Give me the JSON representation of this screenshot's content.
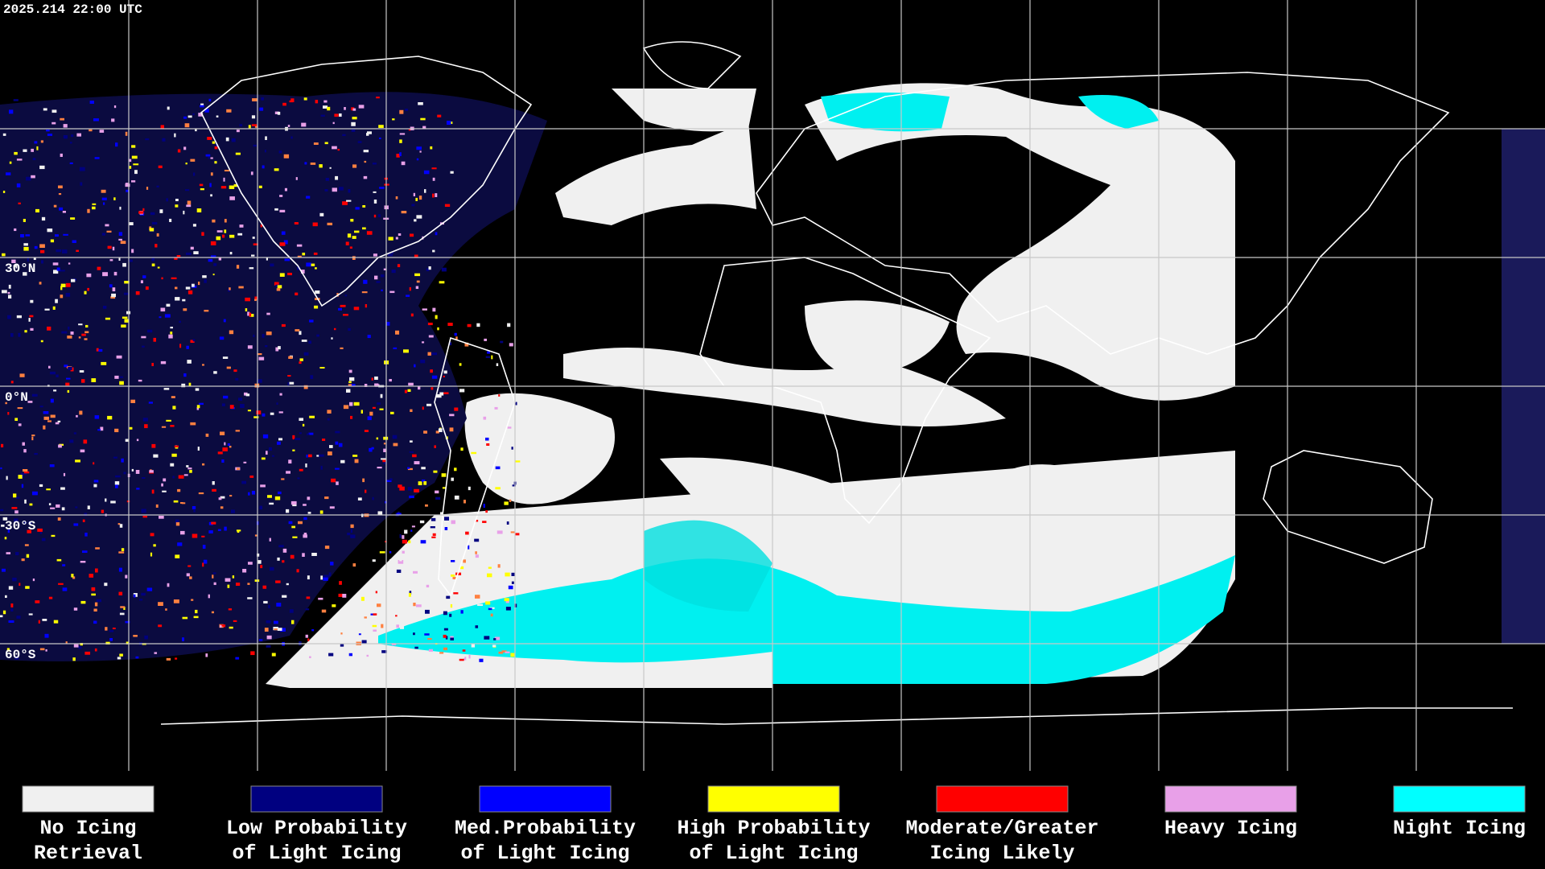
{
  "header": {
    "timestamp": "2025.214 22:00 UTC"
  },
  "map": {
    "lat_labels": [
      "30°N",
      "0°N",
      "30°S",
      "60°S"
    ]
  },
  "legend": {
    "items": [
      {
        "lines": [
          "No Icing",
          "Retrieval"
        ],
        "color": "#f0f0f0"
      },
      {
        "lines": [
          "Low Probability",
          "of Light Icing"
        ],
        "color": "#000080"
      },
      {
        "lines": [
          "Med.Probability",
          "of Light Icing"
        ],
        "color": "#0000ff"
      },
      {
        "lines": [
          "High Probability",
          "of Light Icing"
        ],
        "color": "#ffff00"
      },
      {
        "lines": [
          "Moderate/Greater",
          "Icing Likely"
        ],
        "color": "#ff0000"
      },
      {
        "lines": [
          "Heavy Icing"
        ],
        "color": "#e8a0e8"
      },
      {
        "lines": [
          "Night Icing"
        ],
        "color": "#00ffff"
      }
    ]
  }
}
